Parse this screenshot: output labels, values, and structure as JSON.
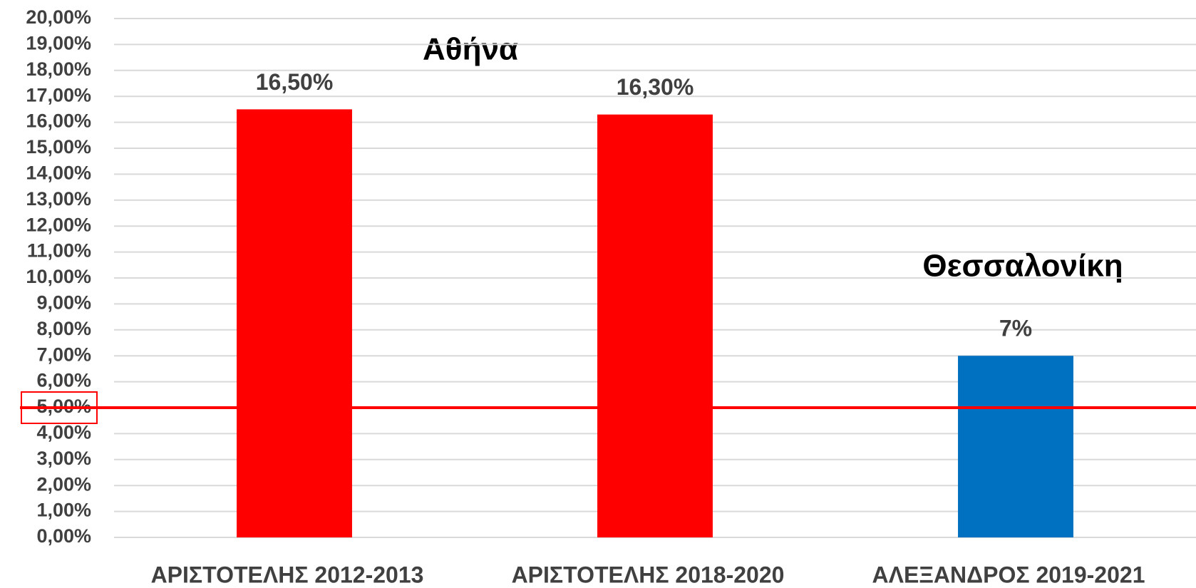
{
  "chart_data": {
    "type": "bar",
    "categories": [
      "ΑΡΙΣΤΟΤΕΛΗΣ 2012-2013",
      "ΑΡΙΣΤΟΤΕΛΗΣ 2018-2020",
      "ΑΛΕΞΑΝΔΡΟΣ 2019-2021"
    ],
    "values": [
      16.5,
      16.3,
      7
    ],
    "value_labels": [
      "16,50%",
      "16,30%",
      "7%"
    ],
    "colors": [
      "#ff0000",
      "#ff0000",
      "#0070c0"
    ],
    "ylim": [
      0,
      20
    ],
    "yticks": [
      {
        "value": 0,
        "label": "0,00%"
      },
      {
        "value": 1,
        "label": "1,00%"
      },
      {
        "value": 2,
        "label": "2,00%"
      },
      {
        "value": 3,
        "label": "3,00%"
      },
      {
        "value": 4,
        "label": "4,00%"
      },
      {
        "value": 5,
        "label": "5,00%"
      },
      {
        "value": 6,
        "label": "6,00%"
      },
      {
        "value": 7,
        "label": "7,00%"
      },
      {
        "value": 8,
        "label": "8,00%"
      },
      {
        "value": 9,
        "label": "9,00%"
      },
      {
        "value": 10,
        "label": "10,00%"
      },
      {
        "value": 11,
        "label": "11,00%"
      },
      {
        "value": 12,
        "label": "12,00%"
      },
      {
        "value": 13,
        "label": "13,00%"
      },
      {
        "value": 14,
        "label": "14,00%"
      },
      {
        "value": 15,
        "label": "15,00%"
      },
      {
        "value": 16,
        "label": "16,00%"
      },
      {
        "value": 17,
        "label": "17,00%"
      },
      {
        "value": 18,
        "label": "18,00%"
      },
      {
        "value": 19,
        "label": "19,00%"
      },
      {
        "value": 20,
        "label": "20,00%"
      }
    ],
    "grid": true,
    "reference_line": {
      "value": 5,
      "color": "#ff0000"
    },
    "annotations": [
      "Αθήνα",
      "Θεσσαλονίκη"
    ]
  }
}
